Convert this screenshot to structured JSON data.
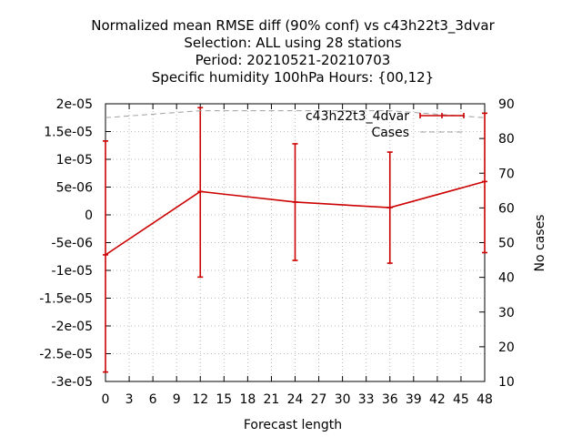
{
  "chart_data": {
    "type": "line",
    "title_lines": [
      "Normalized mean RMSE diff (90% conf) vs c43h22t3_3dvar",
      "Selection: ALL using    28 stations",
      "Period: 20210521-20210703",
      "Specific humidity 100hPa   Hours: {00,12}"
    ],
    "xlabel": "Forecast length",
    "ylabel": "",
    "y2label": "No cases",
    "xlim": [
      0,
      48
    ],
    "ylim": [
      -3e-05,
      2e-05
    ],
    "y2lim": [
      10,
      90
    ],
    "x_ticks": [
      "0",
      "3",
      "6",
      "9",
      "12",
      "15",
      "18",
      "21",
      "24",
      "27",
      "30",
      "33",
      "36",
      "39",
      "42",
      "45",
      "48"
    ],
    "y_ticks": [
      "2e-05",
      "1.5e-05",
      "1e-05",
      "5e-06",
      "0",
      "-5e-06",
      "-1e-05",
      "-1.5e-05",
      "-2e-05",
      "-2.5e-05",
      "-3e-05"
    ],
    "y2_ticks": [
      "90",
      "80",
      "70",
      "60",
      "50",
      "40",
      "30",
      "20",
      "10"
    ],
    "grid": true,
    "legend_position": "top-right",
    "series": [
      {
        "name": "c43h22t3_4dvar",
        "color": "#cc0000",
        "x": [
          0,
          12,
          24,
          36,
          48
        ],
        "y": [
          -7.2e-06,
          4.2e-06,
          2.3e-06,
          1.3e-06,
          6e-06
        ],
        "err_low": [
          -2.83e-05,
          -1.12e-05,
          -8.2e-06,
          -8.7e-06,
          -6.8e-06
        ],
        "err_high": [
          1.33e-05,
          1.93e-05,
          1.28e-05,
          1.13e-05,
          1.83e-05
        ]
      },
      {
        "name": "Cases",
        "color": "#a0a0a0",
        "axis": "y2",
        "x": [
          0,
          12,
          24,
          36,
          48
        ],
        "y": [
          86,
          88,
          88,
          88,
          86
        ]
      }
    ]
  }
}
